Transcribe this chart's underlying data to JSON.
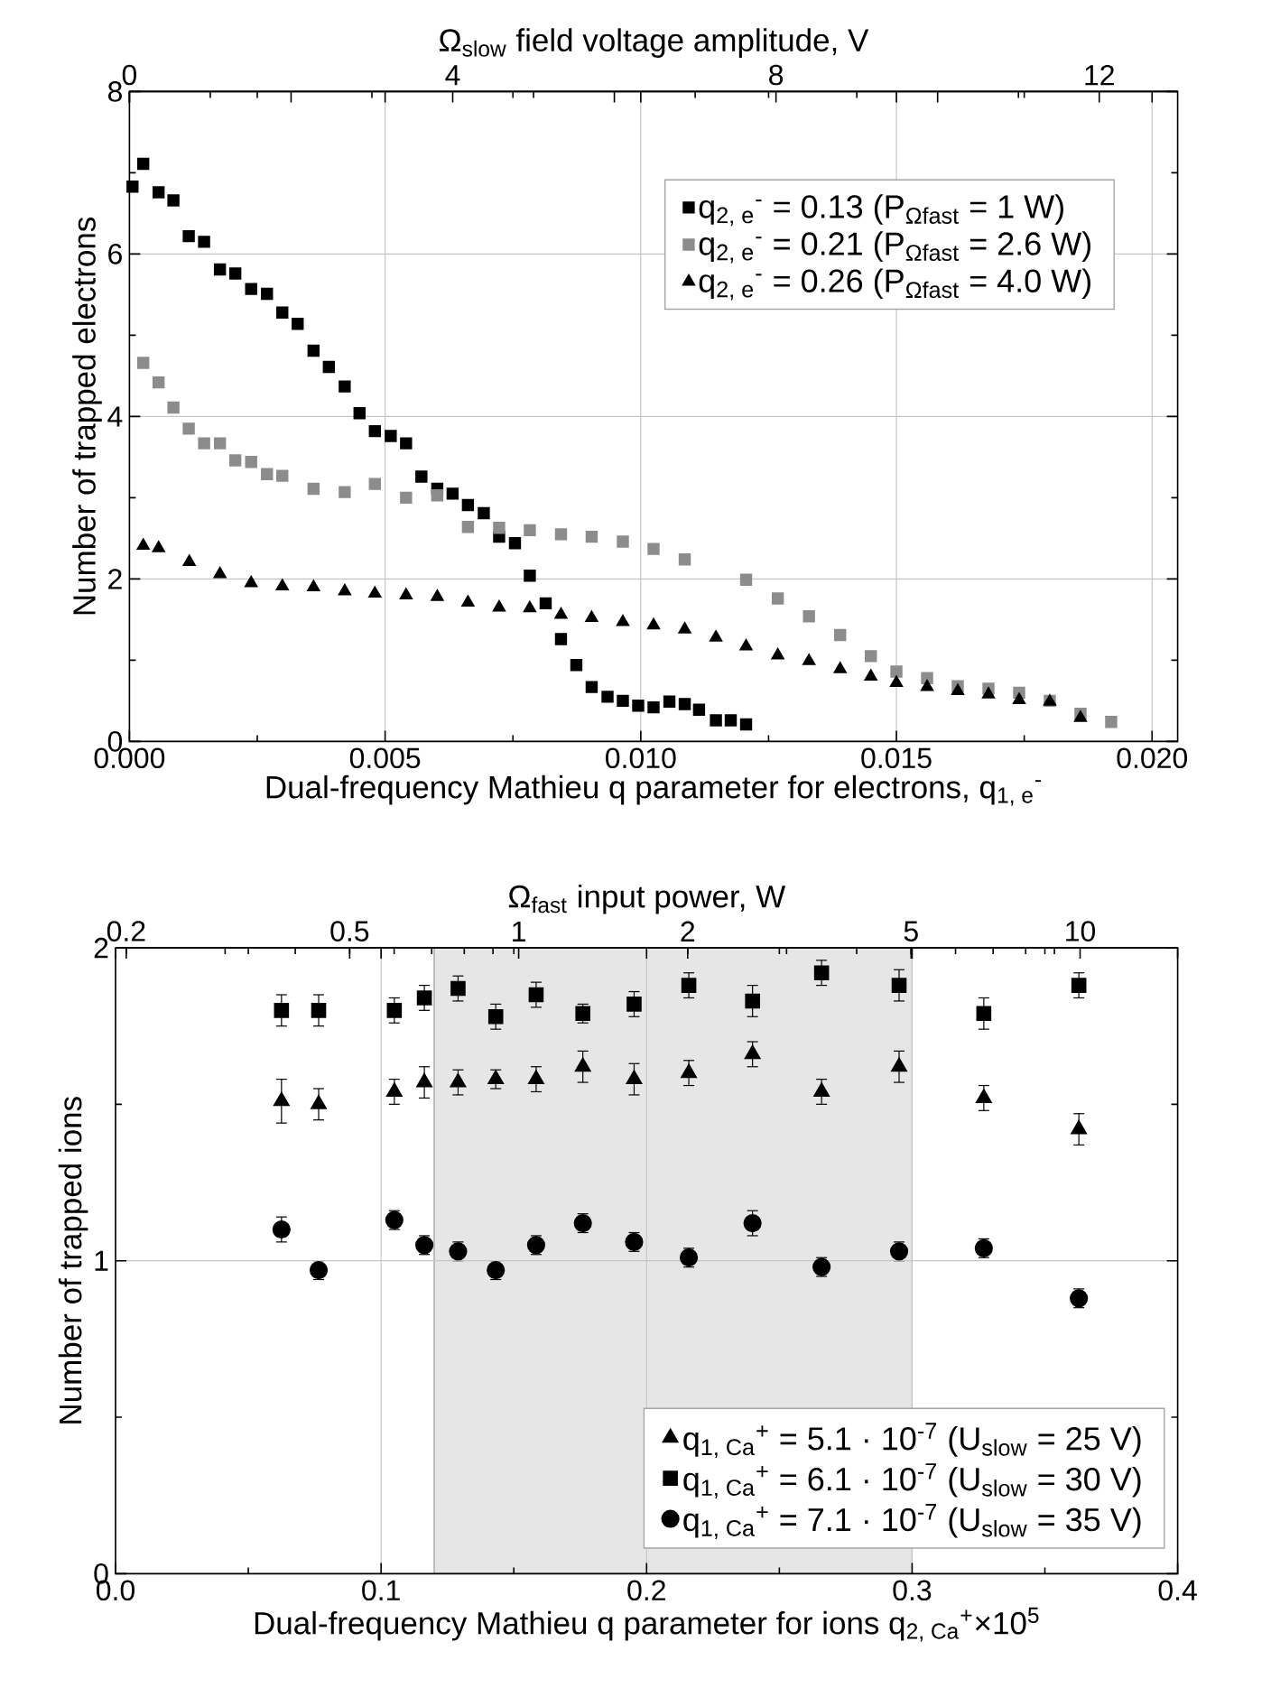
{
  "chart_data": [
    {
      "type": "scatter",
      "xlabel": "Dual-frequency Mathieu q parameter for electrons, q$_{1, e}$$^{-}$",
      "ylabel": "Number of trapped electrons",
      "x2label": "Ω$_{slow}$ field voltage amplitude, V",
      "xlim": [
        0,
        0.0205
      ],
      "ylim": [
        0,
        8
      ],
      "x2lim": [
        0,
        12.97
      ],
      "xticks": [
        {
          "value": 0,
          "label": "0.000"
        },
        {
          "value": 0.005,
          "label": "0.005"
        },
        {
          "value": 0.01,
          "label": "0.010"
        },
        {
          "value": 0.015,
          "label": "0.015"
        },
        {
          "value": 0.02,
          "label": "0.020"
        }
      ],
      "yticks": [
        0,
        2,
        4,
        6,
        8
      ],
      "x2ticks": [
        0,
        {
          "value": 2,
          "label": null
        },
        4,
        {
          "value": 6,
          "label": null
        },
        8,
        {
          "value": 10,
          "label": null
        },
        12
      ],
      "grid": true,
      "legend": "top right",
      "series": [
        {
          "name": "q$_{2, e}$$^{-}$ = 0.13 (P$_{Ωfast}$ = 1 W)",
          "color": "#000000",
          "marker": "square",
          "x": [
            6e-05,
            0.00027,
            0.00057,
            0.00086,
            0.00116,
            0.00146,
            0.00177,
            0.00207,
            0.00238,
            0.00269,
            0.00299,
            0.00329,
            0.0036,
            0.0039,
            0.00421,
            0.0045,
            0.0048,
            0.00511,
            0.00541,
            0.00571,
            0.00602,
            0.00632,
            0.00662,
            0.00693,
            0.00723,
            0.00754,
            0.00783,
            0.00814,
            0.00844,
            0.00874,
            0.00904,
            0.00935,
            0.00965,
            0.00995,
            0.01025,
            0.01056,
            0.01086,
            0.01114,
            0.01147,
            0.01176,
            0.01206
          ],
          "values": [
            6.83,
            7.11,
            6.76,
            6.66,
            6.22,
            6.15,
            5.81,
            5.76,
            5.57,
            5.51,
            5.28,
            5.14,
            4.81,
            4.61,
            4.37,
            4.04,
            3.82,
            3.76,
            3.67,
            3.26,
            3.11,
            3.05,
            2.91,
            2.81,
            2.52,
            2.44,
            2.04,
            1.7,
            1.26,
            0.94,
            0.67,
            0.55,
            0.5,
            0.44,
            0.42,
            0.49,
            0.46,
            0.39,
            0.26,
            0.26,
            0.21
          ]
        },
        {
          "name": "q$_{2, e}$$^{-}$ = 0.21 (P$_{Ωfast}$ = 2.6 W)",
          "color": "#8c8c8c",
          "marker": "square",
          "x": [
            0.00027,
            0.00057,
            0.00086,
            0.00116,
            0.00146,
            0.00177,
            0.00207,
            0.00238,
            0.00269,
            0.00299,
            0.0036,
            0.00421,
            0.0048,
            0.00541,
            0.00602,
            0.00662,
            0.00723,
            0.00783,
            0.00844,
            0.00904,
            0.00965,
            0.01025,
            0.01086,
            0.01206,
            0.01268,
            0.01329,
            0.0139,
            0.0145,
            0.015,
            0.0156,
            0.0162,
            0.0168,
            0.0174,
            0.018,
            0.0186,
            0.0192
          ],
          "values": [
            4.66,
            4.42,
            4.11,
            3.85,
            3.67,
            3.67,
            3.46,
            3.44,
            3.29,
            3.27,
            3.11,
            3.07,
            3.17,
            3.0,
            3.03,
            2.64,
            2.63,
            2.6,
            2.55,
            2.52,
            2.46,
            2.37,
            2.24,
            1.99,
            1.76,
            1.54,
            1.31,
            1.05,
            0.86,
            0.78,
            0.68,
            0.65,
            0.6,
            0.5,
            0.34,
            0.24
          ]
        },
        {
          "name": "q$_{2, e}$$^{-}$ = 0.26 (P$_{Ωfast}$ = 4.0 W)",
          "color": "#000000",
          "marker": "triangle",
          "x": [
            0.00027,
            0.00057,
            0.00117,
            0.00177,
            0.00238,
            0.00299,
            0.0036,
            0.00421,
            0.0048,
            0.00541,
            0.00602,
            0.00662,
            0.00723,
            0.00783,
            0.00844,
            0.00904,
            0.00965,
            0.01025,
            0.01086,
            0.01147,
            0.01206,
            0.01268,
            0.01329,
            0.0139,
            0.0145,
            0.015,
            0.0156,
            0.0162,
            0.0168,
            0.0174,
            0.018,
            0.0186
          ],
          "values": [
            2.41,
            2.38,
            2.21,
            2.06,
            1.95,
            1.91,
            1.9,
            1.85,
            1.82,
            1.8,
            1.78,
            1.71,
            1.65,
            1.64,
            1.56,
            1.52,
            1.47,
            1.43,
            1.38,
            1.28,
            1.17,
            1.06,
            0.99,
            0.89,
            0.8,
            0.72,
            0.67,
            0.62,
            0.58,
            0.51,
            0.49,
            0.29
          ]
        }
      ]
    },
    {
      "type": "scatter",
      "xlabel": "Dual-frequency Mathieu q parameter for ions q$_{2, Ca}$$^{+}$×10$^{5}$",
      "ylabel": "Number of trapped ions",
      "x2label": "Ω$_{fast}$ input power, W",
      "xlim": [
        0,
        0.4
      ],
      "ylim": [
        0,
        2
      ],
      "x2lim": [
        0.1914,
        14.92
      ],
      "log": "x2",
      "xticks": [
        {
          "value": 0,
          "label": "0.0"
        },
        {
          "value": 0.1,
          "label": "0.1"
        },
        {
          "value": 0.2,
          "label": "0.2"
        },
        {
          "value": 0.3,
          "label": "0.3"
        },
        {
          "value": 0.4,
          "label": "0.4"
        }
      ],
      "yticks": [
        0,
        1,
        2
      ],
      "x2ticks": [
        0.2,
        0.5,
        1,
        2,
        5,
        10
      ],
      "grid": true,
      "legend": "bottom right",
      "bands": [
        {
          "axis": "x",
          "from": 0.12,
          "to": 0.3,
          "color": "#e6e6e6"
        }
      ],
      "series": [
        {
          "name": "q$_{1, Ca}$$^{+}$ = 5.1 · 10$^{-7}$ (U$_{slow}$ = 25 V)",
          "color": "#000000",
          "marker": "triangle",
          "x": [
            0.0625,
            0.0765,
            0.105,
            0.1163,
            0.129,
            0.1432,
            0.1584,
            0.176,
            0.1953,
            0.2159,
            0.2399,
            0.2659,
            0.2951,
            0.327,
            0.3628
          ],
          "values": [
            1.51,
            1.5,
            1.54,
            1.57,
            1.57,
            1.58,
            1.58,
            1.62,
            1.58,
            1.6,
            1.66,
            1.54,
            1.62,
            1.52,
            1.42
          ],
          "errors": [
            0.07,
            0.05,
            0.04,
            0.05,
            0.04,
            0.03,
            0.04,
            0.05,
            0.05,
            0.04,
            0.04,
            0.04,
            0.05,
            0.04,
            0.05
          ]
        },
        {
          "name": "q$_{1, Ca}$$^{+}$ = 6.1 · 10$^{-7}$ (U$_{slow}$ = 30 V)",
          "color": "#000000",
          "marker": "square",
          "x": [
            0.0625,
            0.0765,
            0.105,
            0.1163,
            0.129,
            0.1432,
            0.1584,
            0.176,
            0.1953,
            0.2159,
            0.2399,
            0.2659,
            0.2951,
            0.327,
            0.3628
          ],
          "values": [
            1.8,
            1.8,
            1.8,
            1.84,
            1.87,
            1.78,
            1.85,
            1.79,
            1.82,
            1.88,
            1.83,
            1.92,
            1.88,
            1.79,
            1.88
          ],
          "errors": [
            0.05,
            0.05,
            0.04,
            0.04,
            0.04,
            0.04,
            0.04,
            0.03,
            0.04,
            0.04,
            0.05,
            0.04,
            0.05,
            0.05,
            0.04
          ]
        },
        {
          "name": "q$_{1, Ca}$$^{+}$ = 7.1 · 10$^{-7}$ (U$_{slow}$ = 35 V)",
          "color": "#000000",
          "marker": "circle",
          "x": [
            0.0625,
            0.0765,
            0.105,
            0.1163,
            0.129,
            0.1432,
            0.1584,
            0.176,
            0.1953,
            0.2159,
            0.2399,
            0.2659,
            0.2951,
            0.327,
            0.3628
          ],
          "values": [
            1.1,
            0.97,
            1.13,
            1.05,
            1.03,
            0.97,
            1.05,
            1.12,
            1.06,
            1.01,
            1.12,
            0.98,
            1.03,
            1.04,
            0.88
          ],
          "errors": [
            0.04,
            0.03,
            0.03,
            0.03,
            0.03,
            0.03,
            0.03,
            0.03,
            0.03,
            0.03,
            0.04,
            0.03,
            0.03,
            0.03,
            0.03
          ]
        }
      ]
    }
  ]
}
